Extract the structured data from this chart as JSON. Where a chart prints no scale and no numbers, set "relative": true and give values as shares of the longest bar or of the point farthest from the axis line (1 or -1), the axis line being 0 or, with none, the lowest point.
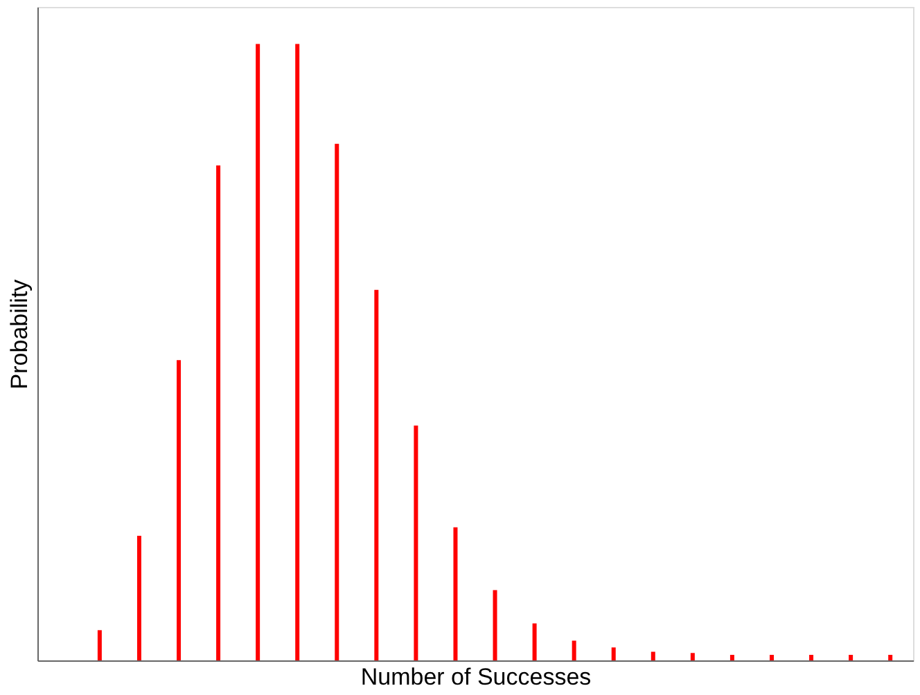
{
  "chart_data": {
    "type": "bar",
    "xlabel": "Number of Successes",
    "ylabel": "Probability",
    "relative": true,
    "categories": [
      null,
      null,
      null,
      null,
      null,
      null,
      null,
      null,
      null,
      null,
      null,
      null,
      null,
      null,
      null,
      null,
      null,
      null,
      null,
      null,
      null
    ],
    "values": [
      0.049,
      0.202,
      0.487,
      0.803,
      1,
      1,
      0.838,
      0.601,
      0.381,
      0.216,
      0.114,
      0.06,
      0.032,
      0.021,
      0.014,
      0.012,
      0.009,
      0.009,
      0.009,
      0.009,
      0.009
    ],
    "color": "#ff0000",
    "grid": false
  }
}
